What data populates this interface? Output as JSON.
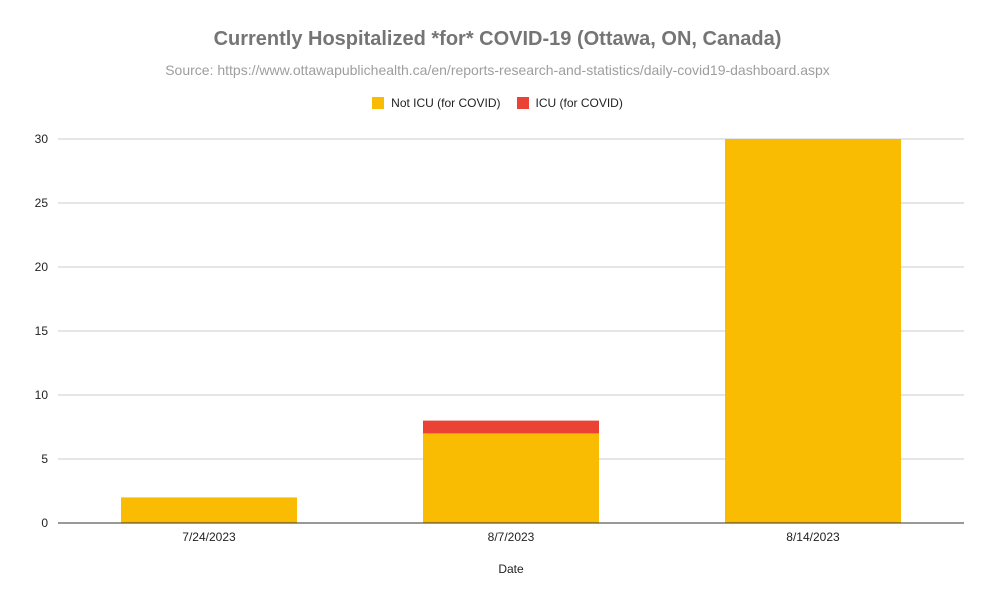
{
  "chart_data": {
    "type": "bar",
    "stacked": true,
    "title": "Currently Hospitalized *for* COVID-19 (Ottawa, ON, Canada)",
    "subtitle": "Source: https://www.ottawapublichealth.ca/en/reports-research-and-statistics/daily-covid19-dashboard.aspx",
    "xlabel": "Date",
    "ylabel": "",
    "categories": [
      "7/24/2023",
      "8/7/2023",
      "8/14/2023"
    ],
    "series": [
      {
        "name": "Not ICU (for COVID)",
        "values": [
          2,
          7,
          30
        ],
        "color": "#f9bc02"
      },
      {
        "name": "ICU (for COVID)",
        "values": [
          0,
          1,
          0
        ],
        "color": "#ea4335"
      }
    ],
    "ylim": [
      0,
      30
    ],
    "yticks": [
      0,
      5,
      10,
      15,
      20,
      25,
      30
    ],
    "grid": true,
    "legend": "top"
  }
}
